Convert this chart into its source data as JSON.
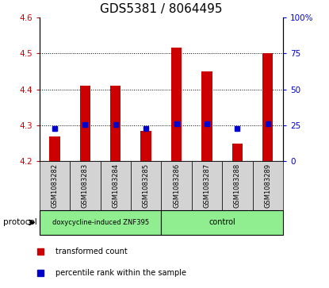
{
  "title": "GDS5381 / 8064495",
  "samples": [
    "GSM1083282",
    "GSM1083283",
    "GSM1083284",
    "GSM1083285",
    "GSM1083286",
    "GSM1083287",
    "GSM1083288",
    "GSM1083289"
  ],
  "red_values": [
    4.27,
    4.41,
    4.41,
    4.285,
    4.515,
    4.45,
    4.25,
    4.5
  ],
  "blue_values": [
    4.29,
    4.302,
    4.302,
    4.29,
    4.305,
    4.305,
    4.29,
    4.305
  ],
  "bar_bottom": 4.2,
  "ylim": [
    4.2,
    4.6
  ],
  "yticks_left": [
    4.2,
    4.3,
    4.4,
    4.5,
    4.6
  ],
  "yticks_right": [
    0,
    25,
    50,
    75,
    100
  ],
  "group1_label": "doxycycline-induced ZNF395",
  "group2_label": "control",
  "protocol_label": "protocol",
  "group1_count": 4,
  "group2_count": 4,
  "legend1": "transformed count",
  "legend2": "percentile rank within the sample",
  "red_color": "#cc0000",
  "blue_color": "#0000cc",
  "green_bg": "#90ee90",
  "sample_bg": "#d3d3d3",
  "bar_width": 0.35,
  "blue_marker_size": 5,
  "title_fontsize": 11,
  "tick_fontsize": 7.5,
  "sample_fontsize": 6,
  "proto_fontsize": 6,
  "legend_fontsize": 7
}
